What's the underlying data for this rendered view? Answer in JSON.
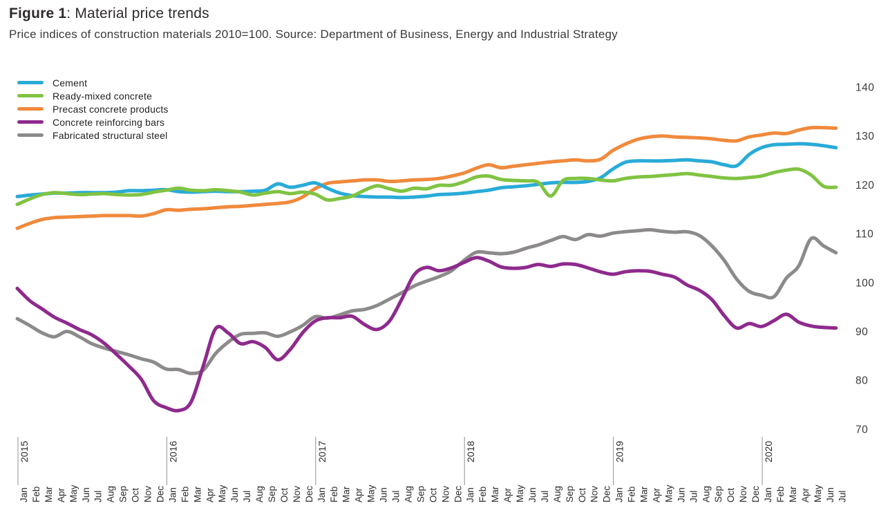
{
  "header": {
    "figure_label": "Figure 1",
    "title_rest": ": Material price trends",
    "subtitle": "Price indices of construction materials 2010=100. Source: Department of Business, Energy and Industrial Strategy"
  },
  "colors": {
    "title_text": "#2e2a2b",
    "subtitle_text": "#3a3a3a",
    "axis_text": "#3a3a3a",
    "month_text": "#2b2b2b",
    "year_separator": "#9a9a9a",
    "background": "#ffffff"
  },
  "chart_data": {
    "type": "line",
    "title": "Material price trends",
    "x_start": "Jan 2015",
    "x_end": "Jul 2020",
    "month_labels": [
      "Jan",
      "Feb",
      "Mar",
      "Apr",
      "May",
      "Jun",
      "Jul",
      "Aug",
      "Sep",
      "Oct",
      "Nov",
      "Dec"
    ],
    "years": [
      "2015",
      "2016",
      "2017",
      "2018",
      "2019",
      "2020"
    ],
    "n_points": 67,
    "y_ticks": [
      140,
      130,
      120,
      110,
      100,
      90,
      80,
      70
    ],
    "ylim": [
      70,
      140
    ],
    "y_axis_side": "right",
    "grid": false,
    "legend_position": "top-left",
    "series": [
      {
        "name": "Cement",
        "color": "#29ABD8",
        "values": [
          117.6,
          117.9,
          118.1,
          118.3,
          118.3,
          118.4,
          118.4,
          118.4,
          118.5,
          118.8,
          118.8,
          118.9,
          119.0,
          118.6,
          118.5,
          118.6,
          118.7,
          118.6,
          118.6,
          118.7,
          118.9,
          120.2,
          119.5,
          119.9,
          120.4,
          119.3,
          118.3,
          117.8,
          117.6,
          117.5,
          117.5,
          117.4,
          117.5,
          117.7,
          118.0,
          118.1,
          118.3,
          118.6,
          118.9,
          119.4,
          119.6,
          119.8,
          120.1,
          120.4,
          120.5,
          120.5,
          120.7,
          121.4,
          123.2,
          124.6,
          124.9,
          124.9,
          124.9,
          125.0,
          125.1,
          124.9,
          124.7,
          124.1,
          123.9,
          126.2,
          127.6,
          128.2,
          128.3,
          128.4,
          128.3,
          128.0,
          127.6
        ]
      },
      {
        "name": "Ready-mixed concrete",
        "color": "#80C342",
        "values": [
          116.0,
          117.1,
          118.0,
          118.4,
          118.2,
          118.0,
          118.1,
          118.2,
          118.0,
          117.9,
          118.0,
          118.5,
          118.9,
          119.3,
          118.9,
          118.8,
          119.0,
          118.8,
          118.5,
          117.9,
          118.3,
          118.6,
          118.2,
          118.5,
          118.1,
          116.9,
          117.2,
          117.7,
          118.9,
          119.8,
          119.2,
          118.7,
          119.3,
          119.2,
          119.9,
          119.9,
          120.6,
          121.6,
          121.8,
          121.1,
          120.9,
          120.8,
          120.5,
          117.7,
          120.9,
          121.3,
          121.3,
          121.0,
          120.8,
          121.3,
          121.6,
          121.7,
          121.9,
          122.1,
          122.3,
          122.0,
          121.7,
          121.4,
          121.3,
          121.5,
          121.8,
          122.5,
          123.0,
          123.2,
          122.0,
          119.7,
          119.5
        ]
      },
      {
        "name": "Precast concrete products",
        "color": "#F08A3C",
        "values": [
          111.1,
          112.1,
          112.9,
          113.3,
          113.4,
          113.5,
          113.6,
          113.7,
          113.7,
          113.7,
          113.6,
          114.1,
          114.9,
          114.8,
          115.0,
          115.1,
          115.3,
          115.5,
          115.6,
          115.8,
          116.0,
          116.2,
          116.5,
          117.5,
          119.2,
          120.3,
          120.6,
          120.8,
          121.0,
          121.0,
          120.7,
          120.8,
          121.0,
          121.1,
          121.3,
          121.8,
          122.4,
          123.4,
          124.1,
          123.5,
          123.8,
          124.1,
          124.4,
          124.7,
          124.9,
          125.1,
          124.9,
          125.2,
          127.0,
          128.3,
          129.3,
          129.8,
          130.0,
          129.8,
          129.7,
          129.6,
          129.4,
          129.1,
          129.0,
          129.8,
          130.2,
          130.6,
          130.5,
          131.2,
          131.7,
          131.7,
          131.6
        ]
      },
      {
        "name": "Concrete reinforcing bars",
        "color": "#8E2A8D",
        "values": [
          98.8,
          96.3,
          94.6,
          92.9,
          91.7,
          90.4,
          89.3,
          87.6,
          85.3,
          82.9,
          80.2,
          75.8,
          74.4,
          73.8,
          75.5,
          83.0,
          90.6,
          89.7,
          87.5,
          87.9,
          86.7,
          84.2,
          86.3,
          89.7,
          92.1,
          92.8,
          92.8,
          93.1,
          91.4,
          90.4,
          92.1,
          96.6,
          101.6,
          103.1,
          102.4,
          103.0,
          104.1,
          105.1,
          104.4,
          103.2,
          102.9,
          103.1,
          103.7,
          103.3,
          103.8,
          103.7,
          103.0,
          102.2,
          101.7,
          102.2,
          102.4,
          102.3,
          101.7,
          101.1,
          99.5,
          98.4,
          96.5,
          93.2,
          90.7,
          91.6,
          91.0,
          92.2,
          93.5,
          91.9,
          91.1,
          90.8,
          90.7
        ]
      },
      {
        "name": "Fabricated structural steel",
        "color": "#8D8A8A",
        "values": [
          92.6,
          91.2,
          89.7,
          88.9,
          90.0,
          88.9,
          87.5,
          86.6,
          85.9,
          85.2,
          84.4,
          83.7,
          82.3,
          82.2,
          81.4,
          82.1,
          85.5,
          87.8,
          89.4,
          89.6,
          89.7,
          89.0,
          89.9,
          91.2,
          93.0,
          92.7,
          93.4,
          94.2,
          94.5,
          95.3,
          96.6,
          97.9,
          99.3,
          100.3,
          101.2,
          102.4,
          104.5,
          106.2,
          106.1,
          105.9,
          106.2,
          107.0,
          107.7,
          108.6,
          109.4,
          108.8,
          109.8,
          109.5,
          110.1,
          110.4,
          110.6,
          110.8,
          110.5,
          110.3,
          110.4,
          109.6,
          107.5,
          104.5,
          100.7,
          98.2,
          97.4,
          97.1,
          100.9,
          103.4,
          109.0,
          107.5,
          106.1
        ]
      }
    ]
  }
}
